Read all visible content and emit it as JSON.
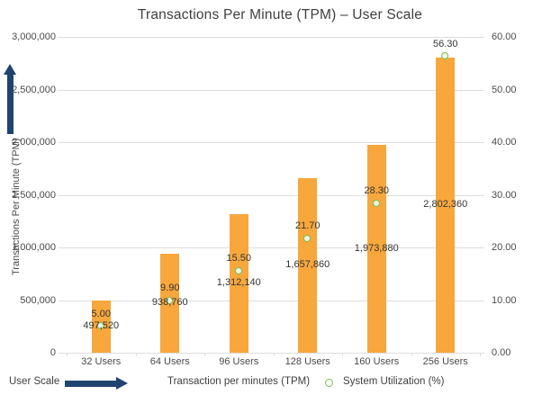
{
  "title": "Transactions Per Minute (TPM) – User Scale",
  "y_axis_left": {
    "title": "Transactions Per Minute (TPM)",
    "tick_labels": [
      "3,000,000",
      "2,500,000",
      "2,000,000",
      "1,500,000",
      "1,000,000",
      "500,000",
      "0"
    ]
  },
  "y_axis_right": {
    "tick_labels": [
      "60.00",
      "50.00",
      "40.00",
      "30.00",
      "20.00",
      "10.00",
      "0.00"
    ]
  },
  "chart_data": {
    "type": "bar",
    "categories": [
      "32 Users",
      "64 Users",
      "96 Users",
      "128 Users",
      "160 Users",
      "256 Users"
    ],
    "series": [
      {
        "name": "Transaction per minutes (TPM)",
        "type": "bar",
        "axis": "left",
        "values": [
          497520,
          938760,
          1312140,
          1657860,
          1973880,
          2802360
        ],
        "value_labels": [
          "497,520",
          "938,760",
          "1,312,140",
          "1,657,860",
          "1,973,880",
          "2,802,360"
        ]
      },
      {
        "name": "System Utilization (%)",
        "type": "line-markers",
        "axis": "right",
        "values": [
          5.0,
          9.9,
          15.5,
          21.7,
          28.3,
          56.3
        ],
        "value_labels": [
          "5.00",
          "9.90",
          "15.50",
          "21.70",
          "28.30",
          "56.30"
        ]
      }
    ],
    "xlabel": "User Scale",
    "ylabel_left": "Transactions Per Minute (TPM)",
    "ylim_left": [
      0,
      3000000
    ],
    "ylim_right": [
      0,
      60
    ],
    "grid": true,
    "legend_position": "bottom"
  },
  "legend": {
    "user_scale": "User Scale",
    "items": [
      {
        "label": "Transaction per minutes (TPM)"
      },
      {
        "label": "System Utilization (%)"
      }
    ]
  },
  "colors": {
    "bar": "#f7a73c",
    "utilization_line": "#7cbf4d",
    "marker_fill": "#eef6e4",
    "arrow_navy": "#1f4470",
    "gridline": "#dedede",
    "title_text": "#3f3f3f",
    "axis_text": "#4a4a4a",
    "label_text": "#353535"
  }
}
